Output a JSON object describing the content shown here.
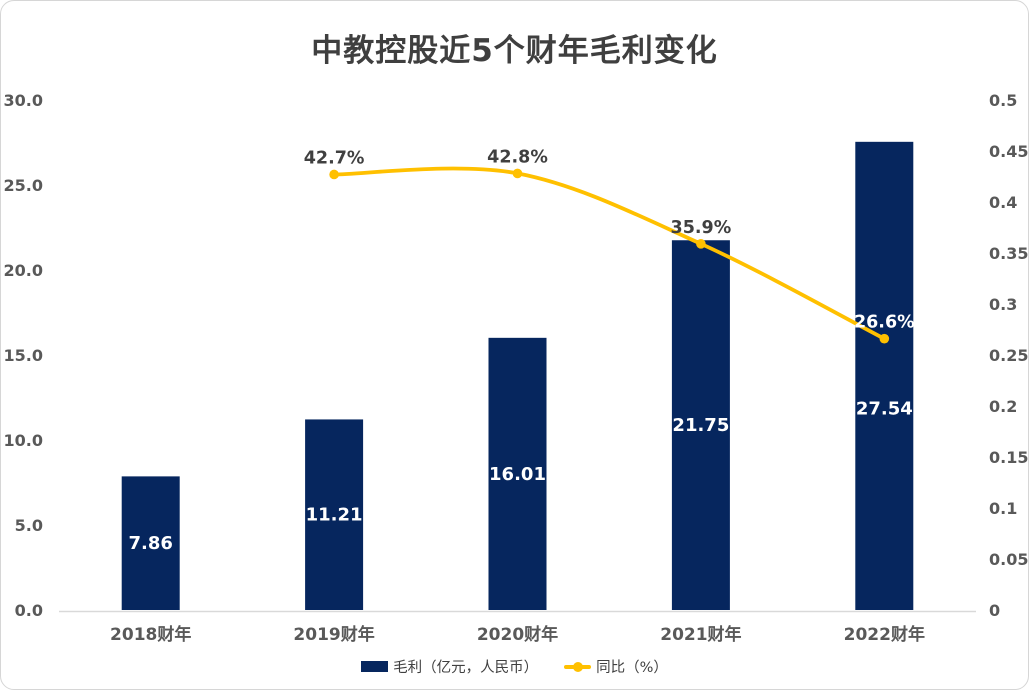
{
  "title": "中教控股近5个财年毛利变化",
  "colors": {
    "bar": "#06265E",
    "line": "#FFC000",
    "axis_line": "#D9D9D9",
    "tick_text": "#595959",
    "data_label_dark": "#404040",
    "data_label_light": "#FFFFFF",
    "title_text": "#3F3F3F"
  },
  "chart_data": {
    "type": "bar",
    "subtype": "bar-and-line-combo",
    "title": "中教控股近5个财年毛利变化",
    "categories": [
      "2018财年",
      "2019财年",
      "2020财年",
      "2021财年",
      "2022财年"
    ],
    "series": [
      {
        "name": "毛利（亿元，人民币）",
        "type": "bar",
        "axis": "left",
        "values": [
          7.86,
          11.21,
          16.01,
          21.75,
          27.54
        ],
        "labels": [
          "7.86",
          "11.21",
          "16.01",
          "21.75",
          "27.54"
        ],
        "label_color": "#FFFFFF",
        "label_pos_fraction": [
          0.5,
          0.5,
          0.5,
          0.5,
          0.57
        ],
        "color": "#06265E"
      },
      {
        "name": "同比（%）",
        "type": "line",
        "axis": "right",
        "smooth": true,
        "category_indices": [
          1,
          2,
          3,
          4
        ],
        "values": [
          0.427,
          0.428,
          0.359,
          0.266
        ],
        "labels": [
          "42.7%",
          "42.8%",
          "35.9%",
          "26.6%"
        ],
        "label_colors": [
          "#404040",
          "#404040",
          "#404040",
          "#FFFFFF"
        ],
        "color": "#FFC000"
      }
    ],
    "left_axis": {
      "min": 0,
      "max": 30,
      "step": 5,
      "tick_labels": [
        "0.0",
        "5.0",
        "10.0",
        "15.0",
        "20.0",
        "25.0",
        "30.0"
      ]
    },
    "right_axis": {
      "min": 0,
      "max": 0.5,
      "step": 0.05,
      "tick_labels": [
        "0",
        "0.05",
        "0.1",
        "0.15",
        "0.2",
        "0.25",
        "0.3",
        "0.35",
        "0.4",
        "0.45",
        "0.5"
      ]
    },
    "grid": false,
    "legend_position": "bottom",
    "legend": [
      {
        "label": "毛利（亿元，人民币）",
        "swatch": "bar",
        "color": "#06265E"
      },
      {
        "label": "同比（%）",
        "swatch": "line",
        "color": "#FFC000"
      }
    ]
  }
}
